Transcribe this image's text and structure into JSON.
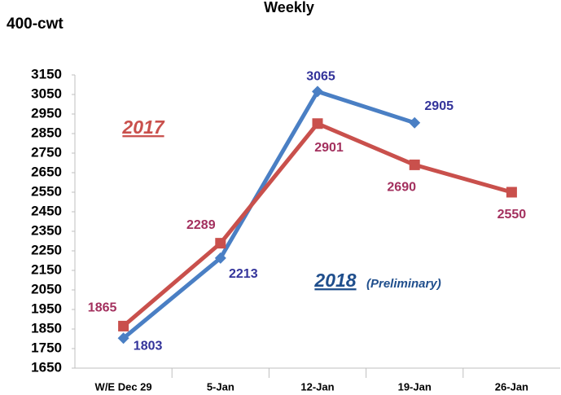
{
  "chart_data": {
    "type": "line",
    "title": "Weekly",
    "unit_label": "400-cwt",
    "categories": [
      "W/E Dec 29",
      "5-Jan",
      "12-Jan",
      "19-Jan",
      "26-Jan"
    ],
    "series": [
      {
        "name": "2018",
        "note": "(Preliminary)",
        "color": "#4a7fc4",
        "label_color": "#33339a",
        "name_color": "#1f4e8c",
        "marker": "diamond",
        "values": [
          1803,
          2213,
          3065,
          2905,
          null
        ]
      },
      {
        "name": "2017",
        "color": "#c9504c",
        "label_color": "#a3305e",
        "name_color": "#c9504c",
        "marker": "square",
        "values": [
          1865,
          2289,
          2901,
          2690,
          2550
        ]
      }
    ],
    "ylim": [
      1650,
      3150
    ],
    "yticks": [
      1650,
      1750,
      1850,
      1950,
      2050,
      2150,
      2250,
      2350,
      2450,
      2550,
      2650,
      2750,
      2850,
      2950,
      3050,
      3150
    ],
    "grid": false
  }
}
